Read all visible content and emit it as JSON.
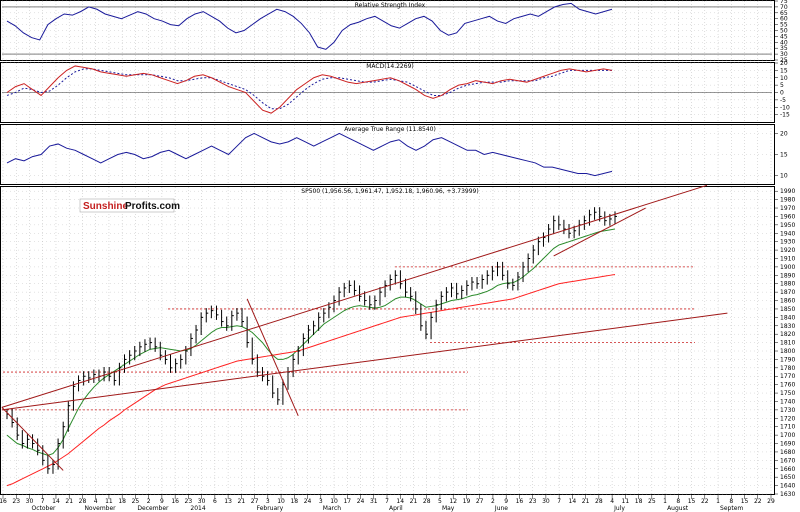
{
  "watermark": {
    "part1": "Sunshine",
    "part2": "Profits.com"
  },
  "panels": {
    "rsi": {
      "title": "Relative Strength Index"
    },
    "macd": {
      "title": "MACD(14.2269)"
    },
    "atr": {
      "title": "Average True Range (11.8540)"
    },
    "price": {
      "title": "SP500 (1,956.56, 1,961.47, 1,952.18, 1,960.96, +3.73999)"
    }
  },
  "colors": {
    "line_blue": "#1a1a9a",
    "macd_red": "#cc2222",
    "ma_green": "#2a8a2a",
    "ma_red": "#ff2222",
    "trend": "#a01818",
    "level": "#cc2222",
    "grid": "#bbbbbb",
    "bar": "#000000"
  },
  "chart_data": [
    {
      "type": "line",
      "title": "Relative Strength Index",
      "ylim": [
        25,
        75
      ],
      "yticks": [
        75,
        70,
        65,
        60,
        55,
        50,
        45,
        40,
        35,
        30,
        25
      ],
      "reference_lines": [
        70,
        30
      ],
      "series": [
        {
          "values": [
            58,
            54,
            48,
            44,
            42,
            55,
            60,
            64,
            63,
            66,
            70,
            68,
            64,
            62,
            60,
            63,
            66,
            64,
            60,
            58,
            55,
            54,
            60,
            64,
            66,
            62,
            58,
            52,
            48,
            50,
            55,
            60,
            64,
            68,
            66,
            62,
            56,
            48,
            36,
            34,
            40,
            50,
            55,
            57,
            60,
            62,
            58,
            54,
            52,
            56,
            60,
            62,
            58,
            50,
            46,
            48,
            56,
            58,
            60,
            62,
            58,
            56,
            60,
            62,
            64,
            62,
            66,
            70,
            72,
            73,
            68,
            66,
            64,
            66,
            68
          ]
        }
      ]
    },
    {
      "type": "line",
      "title": "MACD(14.2269)",
      "ylim": [
        -20,
        20
      ],
      "yticks": [
        20,
        15,
        10,
        5,
        0,
        -5,
        -10,
        -15
      ],
      "reference_lines": [
        0
      ],
      "series": [
        {
          "values": [
            0,
            4,
            6,
            2,
            -2,
            4,
            10,
            15,
            18,
            17,
            16,
            14,
            13,
            12,
            11,
            12,
            13,
            12,
            10,
            8,
            6,
            8,
            11,
            12,
            10,
            7,
            4,
            2,
            0,
            -6,
            -12,
            -14,
            -10,
            -4,
            2,
            6,
            10,
            12,
            11,
            9,
            7,
            6,
            7,
            8,
            9,
            10,
            8,
            5,
            2,
            -2,
            -4,
            -2,
            2,
            5,
            6,
            8,
            7,
            6,
            8,
            9,
            8,
            7,
            9,
            11,
            13,
            15,
            16,
            15,
            14,
            15,
            16,
            15
          ]
        },
        {
          "values": [
            -2,
            0,
            3,
            2,
            0,
            1,
            5,
            10,
            14,
            16,
            16,
            15,
            14,
            13,
            12,
            12,
            12,
            12,
            11,
            10,
            8,
            8,
            9,
            10,
            10,
            8,
            6,
            4,
            2,
            -2,
            -7,
            -11,
            -11,
            -8,
            -3,
            2,
            6,
            9,
            10,
            10,
            9,
            8,
            7,
            7,
            8,
            9,
            8,
            7,
            4,
            1,
            -2,
            -2,
            0,
            3,
            5,
            6,
            7,
            7,
            7,
            8,
            8,
            8,
            8,
            10,
            11,
            13,
            15,
            15,
            15,
            15,
            15,
            15
          ]
        }
      ]
    },
    {
      "type": "line",
      "title": "Average True Range (11.8540)",
      "ylim": [
        8,
        22
      ],
      "yticks": [
        20,
        15,
        10
      ],
      "series": [
        {
          "values": [
            13,
            14,
            13.5,
            14.5,
            15,
            17,
            17.5,
            16.5,
            16,
            15,
            14,
            13,
            14,
            15,
            15.5,
            15,
            14,
            14.5,
            15.5,
            16,
            15,
            14,
            15,
            16,
            17,
            16,
            15,
            17,
            19,
            20,
            19,
            18,
            17.5,
            18,
            19,
            18,
            17,
            18,
            19,
            20,
            19,
            18,
            17,
            16,
            17,
            18,
            18.5,
            17,
            16,
            17,
            18.5,
            19,
            18,
            17,
            16,
            16,
            15,
            15.5,
            15,
            14.5,
            14,
            13.5,
            13,
            12,
            12,
            11.5,
            11,
            10.5,
            10.5,
            10,
            10.5,
            11
          ]
        }
      ]
    },
    {
      "type": "bar",
      "title": "SP500 (1,956.56, 1,961.47, 1,952.18, 1,960.96, +3.73999)",
      "ylim": [
        1630,
        1995
      ],
      "yticks": [
        1990,
        1980,
        1970,
        1960,
        1950,
        1940,
        1930,
        1920,
        1910,
        1900,
        1890,
        1880,
        1870,
        1860,
        1850,
        1840,
        1830,
        1820,
        1810,
        1800,
        1790,
        1780,
        1770,
        1760,
        1750,
        1740,
        1730,
        1720,
        1710,
        1700,
        1690,
        1680,
        1670,
        1660,
        1650,
        1640,
        1630
      ],
      "horizontal_levels": [
        1900,
        1850,
        1810,
        1775,
        1730
      ],
      "series": [
        {
          "name": "",
          "values": [
            1725,
            1715,
            1700,
            1690,
            1695,
            1690,
            1682,
            1670,
            1660,
            1665,
            1690,
            1710,
            1735,
            1758,
            1765,
            1770,
            1768,
            1772,
            1770,
            1775,
            1770,
            1765,
            1780,
            1790,
            1795,
            1800,
            1805,
            1808,
            1810,
            1805,
            1795,
            1790,
            1780,
            1785,
            1790,
            1800,
            1815,
            1825,
            1840,
            1845,
            1848,
            1843,
            1835,
            1830,
            1842,
            1845,
            1835,
            1810,
            1790,
            1775,
            1770,
            1765,
            1750,
            1742,
            1760,
            1775,
            1790,
            1800,
            1815,
            1825,
            1830,
            1840,
            1845,
            1852,
            1860,
            1870,
            1875,
            1878,
            1872,
            1865,
            1860,
            1855,
            1860,
            1870,
            1878,
            1885,
            1890,
            1880,
            1870,
            1865,
            1850,
            1830,
            1820,
            1840,
            1855,
            1865,
            1870,
            1875,
            1868,
            1872,
            1878,
            1882,
            1880,
            1885,
            1890,
            1895,
            1900,
            1890,
            1880,
            1878,
            1888,
            1900,
            1910,
            1920,
            1930,
            1935,
            1945,
            1955,
            1950,
            1945,
            1940,
            1943,
            1950,
            1955,
            1962,
            1965,
            1960,
            1955,
            1957,
            1960
          ]
        },
        {
          "name": "",
          "values": [
            1700,
            1695,
            1690,
            1688,
            1685,
            1683,
            1680,
            1678,
            1676,
            1678,
            1685,
            1695,
            1708,
            1720,
            1732,
            1742,
            1750,
            1757,
            1763,
            1768,
            1772,
            1776,
            1780,
            1784,
            1788,
            1792,
            1796,
            1799,
            1802,
            1803,
            1804,
            1803,
            1802,
            1801,
            1800,
            1801,
            1803,
            1807,
            1812,
            1817,
            1822,
            1826,
            1828,
            1828,
            1829,
            1830,
            1829,
            1826,
            1822,
            1816,
            1810,
            1802,
            1795,
            1790,
            1790,
            1792,
            1796,
            1802,
            1808,
            1814,
            1820,
            1826,
            1832,
            1836,
            1840,
            1844,
            1848,
            1851,
            1853,
            1854,
            1853,
            1852,
            1851,
            1852,
            1854,
            1858,
            1862,
            1864,
            1864,
            1863,
            1860,
            1856,
            1852,
            1853,
            1854,
            1856,
            1858,
            1860,
            1861,
            1862,
            1864,
            1866,
            1867,
            1869,
            1871,
            1874,
            1878,
            1880,
            1881,
            1881,
            1884,
            1888,
            1893,
            1898,
            1904,
            1910,
            1916,
            1922,
            1926,
            1928,
            1930,
            1932,
            1934,
            1936,
            1938,
            1940,
            1942,
            1943,
            1944,
            1945
          ]
        },
        {
          "name": "",
          "values": [
            1640,
            1642,
            1645,
            1648,
            1651,
            1654,
            1657,
            1660,
            1663,
            1666,
            1670,
            1674,
            1678,
            1683,
            1688,
            1693,
            1698,
            1703,
            1708,
            1712,
            1717,
            1721,
            1725,
            1730,
            1734,
            1738,
            1742,
            1746,
            1750,
            1754,
            1757,
            1760,
            1762,
            1764,
            1766,
            1768,
            1770,
            1772,
            1774,
            1776,
            1778,
            1780,
            1782,
            1784,
            1786,
            1788,
            1789,
            1790,
            1791,
            1792,
            1793,
            1794,
            1795,
            1796,
            1797,
            1798,
            1799,
            1800,
            1802,
            1804,
            1806,
            1808,
            1810,
            1812,
            1814,
            1816,
            1818,
            1820,
            1822,
            1824,
            1826,
            1828,
            1830,
            1832,
            1834,
            1836,
            1838,
            1840,
            1841,
            1842,
            1843,
            1844,
            1845,
            1846,
            1847,
            1848,
            1849,
            1850,
            1851,
            1852,
            1853,
            1854,
            1855,
            1856,
            1857,
            1858,
            1859,
            1860,
            1861,
            1862,
            1864,
            1866,
            1868,
            1870,
            1872,
            1874,
            1876,
            1878,
            1880,
            1881,
            1882,
            1883,
            1884,
            1885,
            1886,
            1887,
            1888,
            1889,
            1890,
            1891
          ]
        }
      ]
    }
  ],
  "x_axis": {
    "ticks": [
      "16",
      "23",
      "30",
      "7",
      "14",
      "21",
      "28",
      "4",
      "11",
      "18",
      "25",
      "2",
      "9",
      "16",
      "23",
      "30",
      "6",
      "13",
      "21",
      "27",
      "3",
      "10",
      "18",
      "24",
      "3",
      "10",
      "17",
      "24",
      "31",
      "7",
      "14",
      "21",
      "28",
      "5",
      "12",
      "19",
      "27",
      "2",
      "9",
      "16",
      "23",
      "30",
      "7",
      "14",
      "21",
      "28",
      "4",
      "11",
      "18",
      "25",
      "1",
      "8",
      "15",
      "22",
      "1",
      "8",
      "15",
      "22",
      "29"
    ],
    "months": [
      "October",
      "November",
      "December",
      "2014",
      "February",
      "March",
      "April",
      "May",
      "June",
      "July",
      "August",
      "Septem"
    ]
  }
}
